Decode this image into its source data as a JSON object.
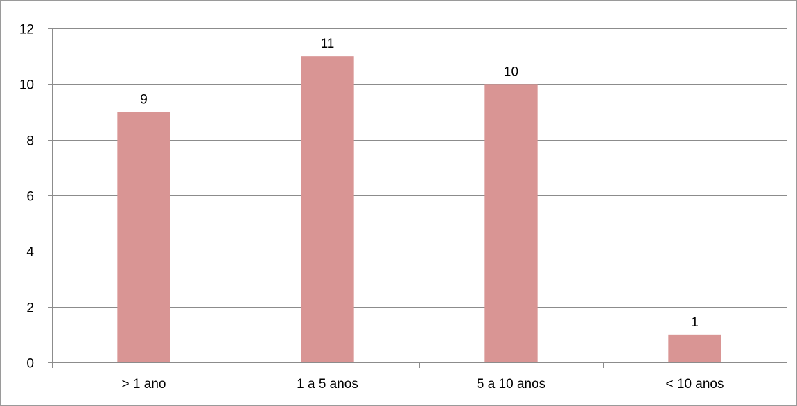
{
  "chart_data": {
    "type": "bar",
    "categories": [
      "> 1 ano",
      "1 a 5 anos",
      "5 a 10 anos",
      "< 10 anos"
    ],
    "values": [
      9,
      11,
      10,
      1
    ],
    "data_labels": [
      "9",
      "11",
      "10",
      "1"
    ],
    "ylim": [
      0,
      12
    ],
    "yticks": [
      0,
      2,
      4,
      6,
      8,
      10,
      12
    ],
    "ytick_labels": [
      "0",
      "2",
      "4",
      "6",
      "8",
      "10",
      "12"
    ],
    "grid": true,
    "legend": "none",
    "title": "",
    "xlabel": "",
    "ylabel": "",
    "colors": {
      "bar": "#d99594",
      "grid": "#8c8c8c",
      "axis": "#8c8c8c"
    }
  }
}
